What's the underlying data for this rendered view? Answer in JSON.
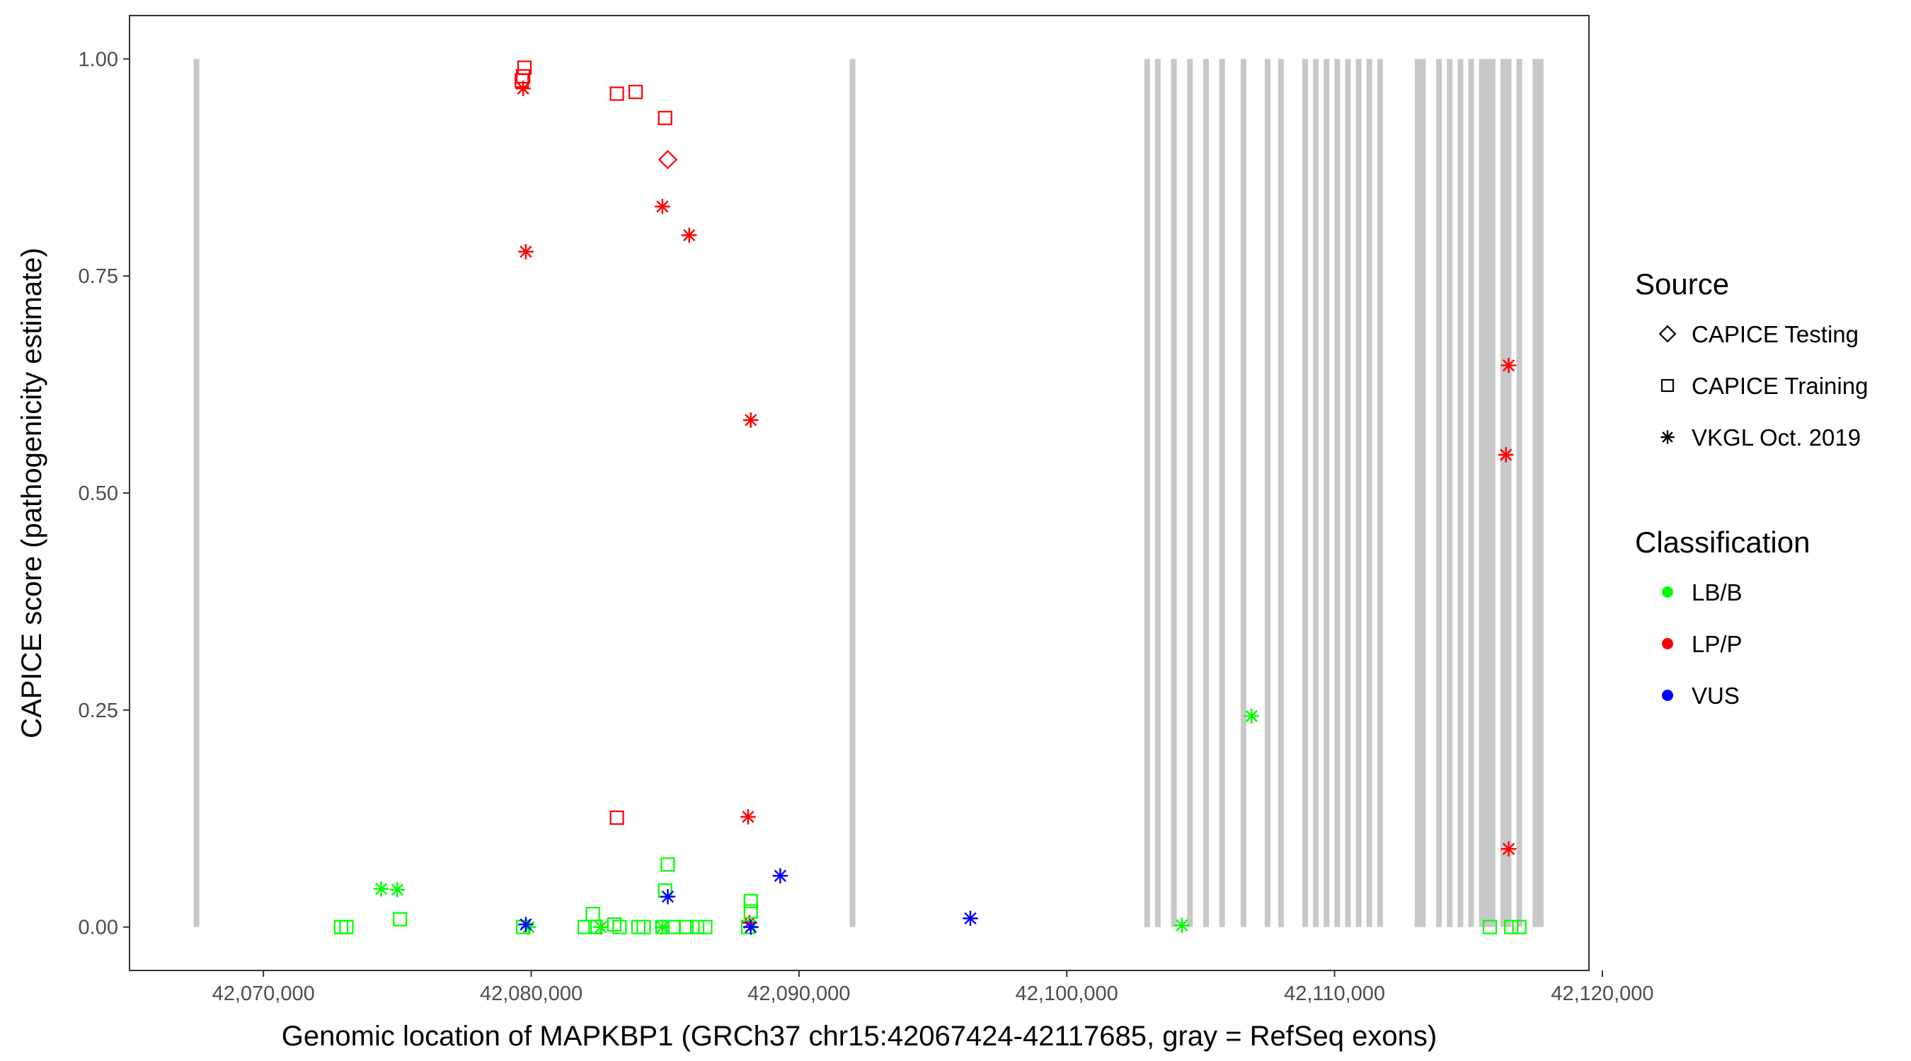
{
  "chart_data": {
    "type": "scatter",
    "xlabel": "Genomic location of MAPKBP1 (GRCh37 chr15:42067424-42117685, gray = RefSeq exons)",
    "ylabel": "CAPICE score (pathogenicity estimate)",
    "xlim": [
      42065000,
      42119500
    ],
    "ylim": [
      -0.05,
      1.05
    ],
    "x_ticks": [
      42070000,
      42080000,
      42090000,
      42100000,
      42110000,
      42120000
    ],
    "x_tick_labels": [
      "42,070,000",
      "42,080,000",
      "42,090,000",
      "42,100,000",
      "42,110,000",
      "42,120,000"
    ],
    "y_ticks": [
      0,
      0.25,
      0.5,
      0.75,
      1
    ],
    "y_tick_labels": [
      "0.00",
      "0.25",
      "0.50",
      "0.75",
      "1.00"
    ],
    "exons": [
      42067500,
      42092000,
      42103000,
      42103400,
      42104000,
      42104600,
      42105200,
      42105800,
      42106600,
      42107500,
      42108000,
      42108900,
      42109300,
      42109700,
      42110100,
      42110500,
      42110900,
      42111300,
      42111700,
      42113100,
      42113300,
      42113900,
      42114300,
      42114700,
      42115100,
      42115500,
      42115700,
      42115900,
      42116300,
      42116500,
      42116900,
      42117500,
      42117700
    ],
    "legend": {
      "source_title": "Source",
      "source_items": [
        {
          "label": "CAPICE Testing",
          "shape": "diamond"
        },
        {
          "label": "CAPICE Training",
          "shape": "square"
        },
        {
          "label": "VKGL Oct. 2019",
          "shape": "asterisk"
        }
      ],
      "class_title": "Classification",
      "class_items": [
        {
          "label": "LB/B",
          "color": "#00ff00"
        },
        {
          "label": "LP/P",
          "color": "#ff0000"
        },
        {
          "label": "VUS",
          "color": "#0000ff"
        }
      ]
    },
    "colors": {
      "LB/B": "#00ff00",
      "LP/P": "#ff0000",
      "VUS": "#0000ff"
    },
    "series": [
      {
        "name": "LP/P - CAPICE Training",
        "class": "LP/P",
        "shape": "square",
        "points": [
          [
            42079700,
            0.98
          ],
          [
            42079750,
            0.99
          ],
          [
            42079650,
            0.975
          ],
          [
            42083200,
            0.96
          ],
          [
            42083900,
            0.962
          ],
          [
            42085000,
            0.932
          ],
          [
            42083200,
            0.126
          ]
        ]
      },
      {
        "name": "LP/P - CAPICE Testing",
        "class": "LP/P",
        "shape": "diamond",
        "points": [
          [
            42085100,
            0.884
          ]
        ]
      },
      {
        "name": "LP/P - VKGL Oct. 2019",
        "class": "LP/P",
        "shape": "asterisk",
        "points": [
          [
            42079700,
            0.966
          ],
          [
            42079800,
            0.778
          ],
          [
            42084900,
            0.83
          ],
          [
            42085900,
            0.797
          ],
          [
            42088200,
            0.584
          ],
          [
            42088100,
            0.127
          ],
          [
            42088150,
            0.005
          ],
          [
            42116500,
            0.647
          ],
          [
            42116400,
            0.544
          ],
          [
            42116500,
            0.09
          ]
        ]
      },
      {
        "name": "LB/B - CAPICE Training",
        "class": "LB/B",
        "shape": "square",
        "points": [
          [
            42072900,
            0.0
          ],
          [
            42073100,
            0.0
          ],
          [
            42075100,
            0.009
          ],
          [
            42079700,
            0.0
          ],
          [
            42082000,
            0.0
          ],
          [
            42082300,
            0.015
          ],
          [
            42082400,
            0.0
          ],
          [
            42083100,
            0.003
          ],
          [
            42083300,
            0.0
          ],
          [
            42084000,
            0.0
          ],
          [
            42084200,
            0.0
          ],
          [
            42084900,
            0.0
          ],
          [
            42085000,
            0.042
          ],
          [
            42085100,
            0.072
          ],
          [
            42085300,
            0.0
          ],
          [
            42085800,
            0.0
          ],
          [
            42086200,
            0.0
          ],
          [
            42086500,
            0.0
          ],
          [
            42088100,
            0.0
          ],
          [
            42088200,
            0.03
          ],
          [
            42088200,
            0.018
          ],
          [
            42115800,
            0.0
          ],
          [
            42116600,
            0.0
          ],
          [
            42116900,
            0.0
          ]
        ]
      },
      {
        "name": "LB/B - VKGL Oct. 2019",
        "class": "LB/B",
        "shape": "asterisk",
        "points": [
          [
            42074400,
            0.044
          ],
          [
            42075000,
            0.043
          ],
          [
            42079900,
            0.0
          ],
          [
            42082600,
            0.0
          ],
          [
            42084900,
            0.0
          ],
          [
            42104300,
            0.002
          ],
          [
            42106900,
            0.243
          ]
        ]
      },
      {
        "name": "VUS - VKGL Oct. 2019",
        "class": "VUS",
        "shape": "asterisk",
        "points": [
          [
            42079800,
            0.003
          ],
          [
            42085100,
            0.035
          ],
          [
            42088200,
            0.0
          ],
          [
            42089300,
            0.059
          ],
          [
            42096400,
            0.01
          ]
        ]
      }
    ]
  }
}
